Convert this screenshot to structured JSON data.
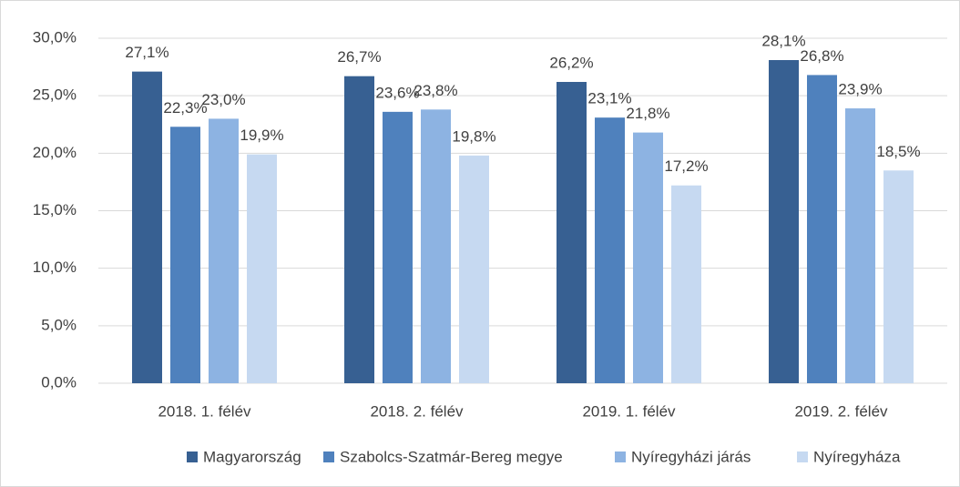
{
  "chart_data": {
    "type": "bar",
    "categories": [
      "2018. 1. félév",
      "2018. 2. félév",
      "2019. 1. félév",
      "2019. 2. félév"
    ],
    "series": [
      {
        "name": "Magyarország",
        "color": "#376092",
        "values": [
          27.1,
          26.7,
          26.2,
          28.1
        ],
        "value_labels": [
          "27,1%",
          "26,7%",
          "26,2%",
          "28,1%"
        ]
      },
      {
        "name": "Szabolcs-Szatmár-Bereg megye",
        "color": "#4f81bd",
        "values": [
          22.3,
          23.6,
          23.1,
          26.8
        ],
        "value_labels": [
          "22,3%",
          "23,6%",
          "23,1%",
          "26,8%"
        ]
      },
      {
        "name": "Nyíregyházi járás",
        "color": "#8db3e2",
        "values": [
          23.0,
          23.8,
          21.8,
          23.9
        ],
        "value_labels": [
          "23,0%",
          "23,8%",
          "21,8%",
          "23,9%"
        ]
      },
      {
        "name": "Nyíregyháza",
        "color": "#c6d9f1",
        "values": [
          19.9,
          19.8,
          17.2,
          18.5
        ],
        "value_labels": [
          "19,9%",
          "19,8%",
          "17,2%",
          "18,5%"
        ]
      }
    ],
    "ylim": [
      0,
      30
    ],
    "yticks": [
      {
        "value": 0,
        "label": "0,0%"
      },
      {
        "value": 5,
        "label": "5,0%"
      },
      {
        "value": 10,
        "label": "10,0%"
      },
      {
        "value": 15,
        "label": "15,0%"
      },
      {
        "value": 20,
        "label": "20,0%"
      },
      {
        "value": 25,
        "label": "25,0%"
      },
      {
        "value": 30,
        "label": "30,0%"
      }
    ],
    "grid": true,
    "legend": "bottom"
  }
}
